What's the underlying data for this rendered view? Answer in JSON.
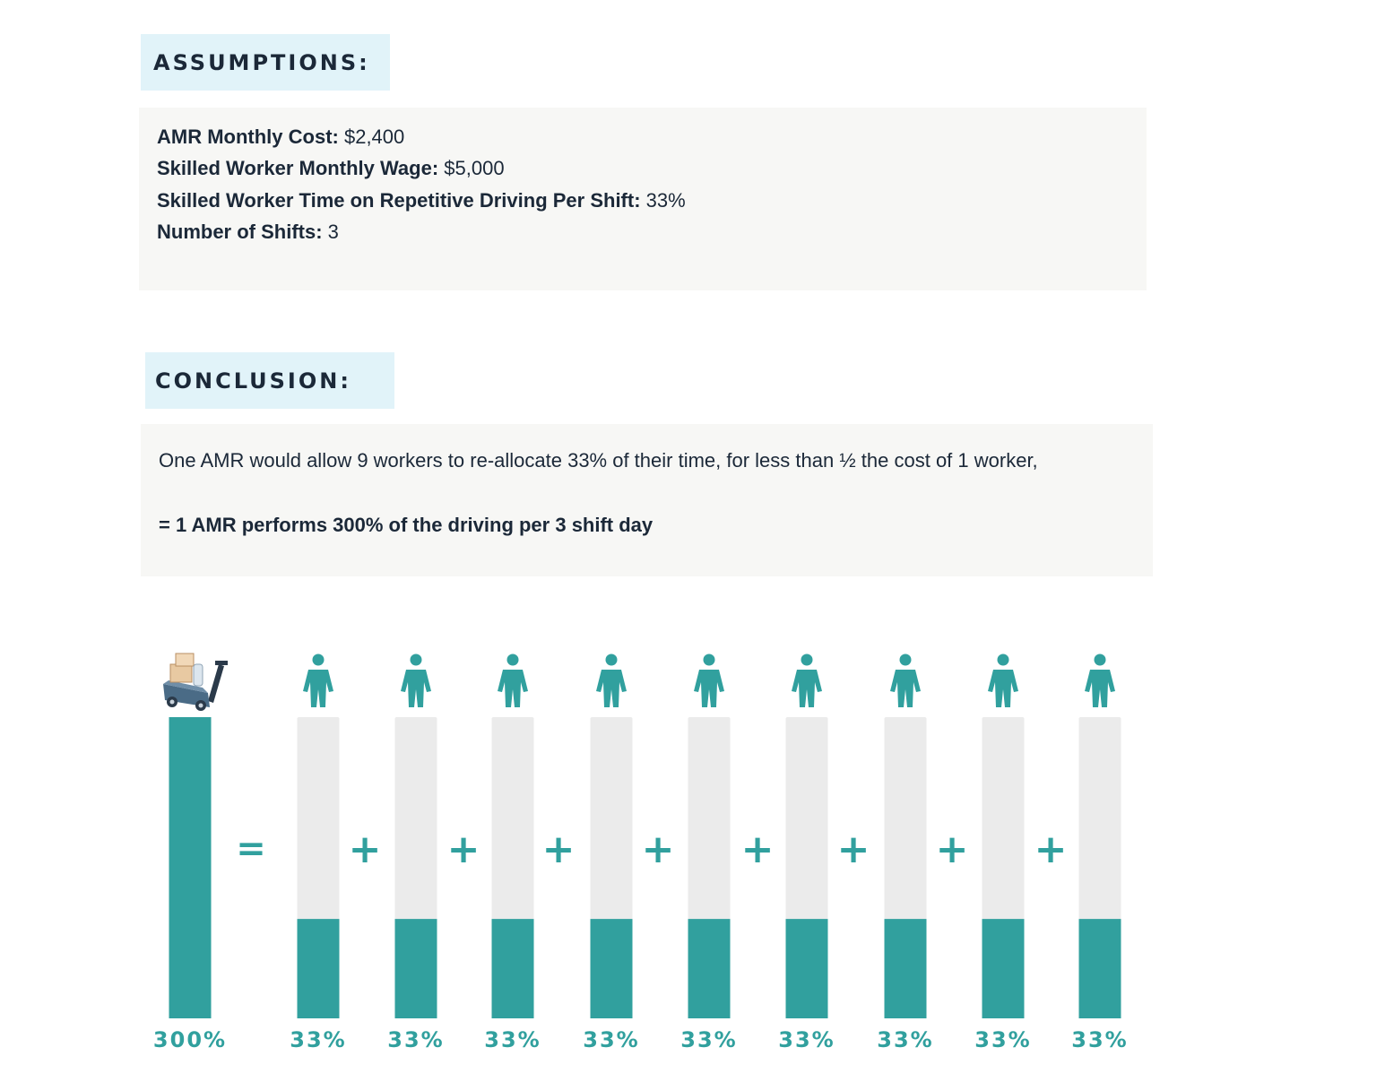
{
  "assumptions": {
    "header": "ASSUMPTIONS:",
    "items": [
      {
        "label": "AMR Monthly Cost:",
        "value": " $2,400"
      },
      {
        "label": "Skilled Worker Monthly Wage:",
        "value": " $5,000"
      },
      {
        "label": "Skilled Worker Time on Repetitive Driving Per Shift:",
        "value": " 33%"
      },
      {
        "label": "Number of Shifts:",
        "value": " 3"
      }
    ]
  },
  "conclusion": {
    "header": "CONCLUSION:",
    "text": "One AMR would allow 9 workers to re-allocate 33% of their time, for less than ½ the cost of 1 worker,",
    "result": "= 1 AMR performs 300% of the driving per 3 shift day"
  },
  "colors": {
    "accent": "#31a09e",
    "track": "#ebebeb",
    "header_bg": "#e1f3f9",
    "panel_bg": "#f7f7f5",
    "text": "#1b2838"
  },
  "chart_data": {
    "type": "bar",
    "categories": [
      "AMR",
      "Worker 1",
      "Worker 2",
      "Worker 3",
      "Worker 4",
      "Worker 5",
      "Worker 6",
      "Worker 7",
      "Worker 8",
      "Worker 9"
    ],
    "values": [
      300,
      33,
      33,
      33,
      33,
      33,
      33,
      33,
      33,
      33
    ],
    "fill_fraction": [
      1.0,
      0.33,
      0.33,
      0.33,
      0.33,
      0.33,
      0.33,
      0.33,
      0.33,
      0.33
    ],
    "data_labels": [
      "300%",
      "33%",
      "33%",
      "33%",
      "33%",
      "33%",
      "33%",
      "33%",
      "33%",
      "33%"
    ],
    "operators": [
      "=",
      "+",
      "+",
      "+",
      "+",
      "+",
      "+",
      "+",
      "+"
    ],
    "icons": [
      "amr-robot-icon",
      "worker-icon",
      "worker-icon",
      "worker-icon",
      "worker-icon",
      "worker-icon",
      "worker-icon",
      "worker-icon",
      "worker-icon",
      "worker-icon"
    ],
    "title": "",
    "xlabel": "",
    "ylabel": ""
  }
}
